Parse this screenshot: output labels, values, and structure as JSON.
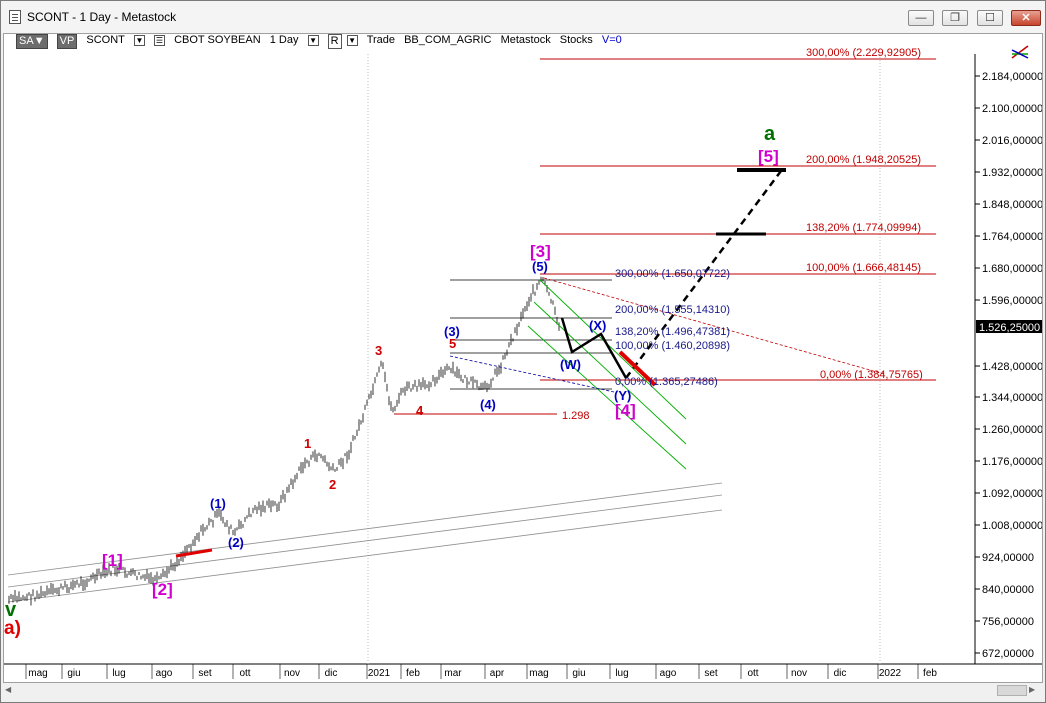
{
  "window": {
    "title": "SCONT - 1 Day - Metastock",
    "buttons": {
      "minimize": "▬",
      "restore": "❐",
      "maximize": "☐",
      "close": "✕"
    },
    "second_buttons": {
      "min": "—",
      "restore": "❐"
    }
  },
  "toolbar": {
    "sa": "SA",
    "vp": "VP",
    "symbol": "SCONT",
    "name": "CBOT SOYBEAN",
    "period": "1 Day",
    "r": "R",
    "trade": "Trade",
    "code": "BB_COM_AGRIC",
    "source": "Metastock",
    "stocks": "Stocks",
    "v": "V=0"
  },
  "price_axis": {
    "ticks": [
      "2.184,00000",
      "2.100,00000",
      "2.016,00000",
      "1.932,00000",
      "1.848,00000",
      "1.764,00000",
      "1.680,00000",
      "1.596,00000",
      "1.526,25000",
      "1.428,00000",
      "1.344,00000",
      "1.260,00000",
      "1.176,00000",
      "1.092,00000",
      "1.008,00000",
      "924,00000",
      "840,00000",
      "756,00000",
      "672,00000"
    ],
    "current_price": "1.526,25000"
  },
  "time_axis": {
    "labels": [
      "mag",
      "giu",
      "lug",
      "ago",
      "set",
      "ott",
      "nov",
      "dic",
      "2021",
      "feb",
      "mar",
      "apr",
      "mag",
      "giu",
      "lug",
      "ago",
      "set",
      "ott",
      "nov",
      "dic",
      "2022",
      "feb"
    ]
  },
  "fib_levels_right": [
    "300,00% (2.229,92905)",
    "200,00% (1.948,20525)",
    "138,20% (1.774,09994)",
    "100,00% (1.666,48145)",
    "0,00% (1.384,75765)"
  ],
  "fib_levels_mid": [
    "300,00% (1.650,07722)",
    "200,00% (1.555,14310)",
    "138,20% (1.496,47381)",
    "100,00% (1.460,20898)",
    "0,00% (1.365,27486)"
  ],
  "support_label": "1.298",
  "wave_labels": {
    "v": "v",
    "a_paren": "a)",
    "w1": "[1]",
    "w2": "[2]",
    "w3": "[3]",
    "w4": "[4]",
    "w5": "[5]",
    "a": "a",
    "p1": "(1)",
    "p2": "(2)",
    "p3": "(3)",
    "p4": "(4)",
    "p5": "(5)",
    "r1": "1",
    "r2": "2",
    "r3": "3",
    "r4": "4",
    "r5": "5",
    "W": "(W)",
    "X": "(X)",
    "Y": "(Y)"
  },
  "colors": {
    "fib_red": "#c00000",
    "blue": "#0000a0",
    "magenta": "#d000d0",
    "green": "#007000",
    "channel": "#00b000"
  }
}
